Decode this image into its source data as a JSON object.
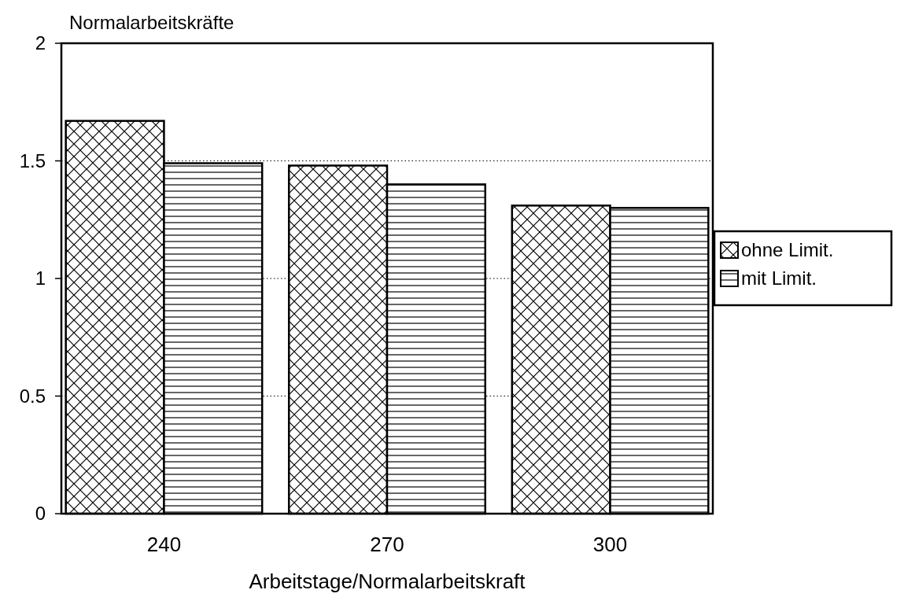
{
  "chart_data": {
    "type": "bar",
    "ylabel": "Normalarbeitskräfte",
    "xlabel": "Arbeitstage/Normalarbeitskraft",
    "categories": [
      "240",
      "270",
      "300"
    ],
    "series": [
      {
        "name": "ohne Limit.",
        "color": "#000000",
        "values": [
          1.67,
          1.48,
          1.31
        ]
      },
      {
        "name": "mit Limit.",
        "color": "#000000",
        "values": [
          1.49,
          1.4,
          1.3
        ]
      }
    ],
    "ylim": [
      0,
      2
    ],
    "yticks": [
      0,
      0.5,
      1,
      1.5,
      2
    ],
    "grid": "y",
    "legend": "right"
  }
}
